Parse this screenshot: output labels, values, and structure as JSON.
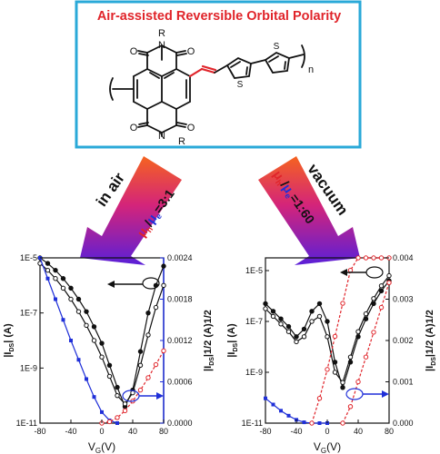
{
  "header": {
    "title": "Air-assisted Reversible Orbital Polarity"
  },
  "molecule": {
    "substituent_top": "R",
    "substituent_bottom": "R",
    "atom_N": "N",
    "atom_O": "O",
    "atom_S": "S",
    "repeat_subscript": "n"
  },
  "arrows": {
    "left": {
      "condition": "in air",
      "ratio_prefix": "μ",
      "h_sub": "h",
      "e_sub": "e",
      "ratio_value": "=3:1"
    },
    "right": {
      "condition": "vacuum",
      "ratio_prefix": "μ",
      "h_sub": "h",
      "e_sub": "e",
      "ratio_value": "=1:60"
    }
  },
  "colors": {
    "frame": "#2aa9d8",
    "title": "#e0242a",
    "hole": "#e0242a",
    "electron": "#1f2fd8",
    "arrow_top": "#f26a22",
    "arrow_bottom": "#6a1fd0",
    "curve_black": "#111111",
    "curve_red": "#e0242a",
    "curve_blue": "#1f2fd8"
  },
  "chart_data": [
    {
      "type": "line",
      "condition": "in air",
      "xlabel": "V",
      "xlabel_sub": "G",
      "xlabel_unit": "(V)",
      "ylabel_left": "|I",
      "ylabel_left_sub": "DS",
      "ylabel_left_unit": "| (A)",
      "ylabel_right": "|I",
      "ylabel_right_sub": "DS",
      "ylabel_right_unit": "|1/2 (A)1/2",
      "x_ticks": [
        "-80",
        "-40",
        "0",
        "40",
        "80"
      ],
      "y_left_ticks": [
        "1E-11",
        "1E-9",
        "1E-7",
        "1E-5"
      ],
      "y_right_ticks": [
        "0.0000",
        "0.0006",
        "0.0012",
        "0.0018",
        "0.0024"
      ],
      "xlim": [
        -80,
        80
      ],
      "ylim_left_log": [
        -11,
        -5
      ],
      "ylim_right": [
        0,
        0.0024
      ],
      "series": [
        {
          "role": "log-forward",
          "x": [
            -80,
            -70,
            -60,
            -50,
            -40,
            -30,
            -20,
            -10,
            0,
            10,
            20,
            30,
            40,
            50,
            60,
            70,
            80
          ],
          "y_log": [
            -5.0,
            -5.2,
            -5.45,
            -5.75,
            -6.1,
            -6.5,
            -6.95,
            -7.5,
            -8.1,
            -8.9,
            -9.7,
            -10.4,
            -9.8,
            -8.4,
            -7.0,
            -6.0,
            -5.3
          ]
        },
        {
          "role": "log-reverse",
          "x": [
            -80,
            -70,
            -60,
            -50,
            -40,
            -30,
            -20,
            -10,
            0,
            10,
            20,
            30,
            40,
            50,
            60,
            70,
            80
          ],
          "y_log": [
            -5.2,
            -5.45,
            -5.75,
            -6.1,
            -6.5,
            -6.95,
            -7.45,
            -8.0,
            -8.6,
            -9.3,
            -10.0,
            -10.3,
            -9.9,
            -8.9,
            -7.8,
            -6.8,
            -6.0
          ]
        },
        {
          "role": "sqrt-hole",
          "x": [
            -80,
            -70,
            -60,
            -50,
            -40,
            -30,
            -20,
            -10,
            0,
            10,
            20
          ],
          "y": [
            0.0024,
            0.0021,
            0.0018,
            0.0015,
            0.0012,
            0.00092,
            0.00064,
            0.00038,
            0.00016,
            4e-05,
            0.0
          ]
        },
        {
          "role": "sqrt-electron",
          "x": [
            0,
            10,
            20,
            30,
            40,
            50,
            60,
            70,
            80
          ],
          "y": [
            0.0,
            2e-05,
            8e-05,
            0.00018,
            0.00032,
            0.00048,
            0.00066,
            0.00085,
            0.00105
          ]
        }
      ]
    },
    {
      "type": "line",
      "condition": "vacuum",
      "xlabel": "V",
      "xlabel_sub": "G",
      "xlabel_unit": "(V)",
      "ylabel_left": "|I",
      "ylabel_left_sub": "DS",
      "ylabel_left_unit": "| (A)",
      "ylabel_right": "|I",
      "ylabel_right_sub": "DS",
      "ylabel_right_unit": "|1/2 (A)1/2",
      "x_ticks": [
        "-80",
        "-40",
        "0",
        "40",
        "80"
      ],
      "y_left_ticks": [
        "1E-11",
        "1E-9",
        "1E-7",
        "1E-5"
      ],
      "y_right_ticks": [
        "0.000",
        "0.001",
        "0.002",
        "0.003",
        "0.004"
      ],
      "xlim": [
        -80,
        80
      ],
      "ylim_left_log": [
        -11,
        -4.5
      ],
      "ylim_right": [
        0,
        0.004
      ],
      "series": [
        {
          "role": "log-forward",
          "x": [
            -80,
            -70,
            -60,
            -50,
            -40,
            -30,
            -20,
            -10,
            0,
            10,
            20,
            30,
            40,
            50,
            60,
            70,
            80
          ],
          "y_log": [
            -6.3,
            -6.6,
            -6.9,
            -7.2,
            -7.6,
            -7.3,
            -6.6,
            -6.3,
            -7.0,
            -8.6,
            -9.6,
            -8.6,
            -7.6,
            -6.9,
            -6.3,
            -5.8,
            -5.4
          ]
        },
        {
          "role": "log-reverse",
          "x": [
            -80,
            -70,
            -60,
            -50,
            -40,
            -30,
            -20,
            -10,
            0,
            10,
            20,
            30,
            40,
            50,
            60,
            70,
            80
          ],
          "y_log": [
            -6.5,
            -6.8,
            -7.1,
            -7.4,
            -7.8,
            -7.6,
            -7.0,
            -6.8,
            -7.6,
            -9.0,
            -9.4,
            -8.4,
            -7.4,
            -6.7,
            -6.1,
            -5.6,
            -5.2
          ]
        },
        {
          "role": "sqrt-hole",
          "x": [
            -80,
            -70,
            -60,
            -50,
            -40,
            -30,
            -20,
            -10,
            0
          ],
          "y": [
            0.0006,
            0.00045,
            0.0003,
            0.00018,
            8e-05,
            2e-05,
            0.0,
            0.0,
            0.0
          ]
        },
        {
          "role": "sqrt-electron",
          "x": [
            -20,
            -10,
            0,
            10,
            20,
            30,
            40,
            50,
            60,
            70,
            80
          ],
          "y": [
            0.0,
            0.0006,
            0.0013,
            0.0021,
            0.0029,
            0.0037,
            0.004,
            0.004,
            0.004,
            0.004,
            0.004
          ]
        },
        {
          "role": "sqrt-hole-right",
          "x": [
            20,
            30,
            40,
            50,
            60,
            70,
            80
          ],
          "y": [
            0.0,
            0.0004,
            0.001,
            0.0016,
            0.0022,
            0.0028,
            0.0034
          ]
        }
      ]
    }
  ]
}
